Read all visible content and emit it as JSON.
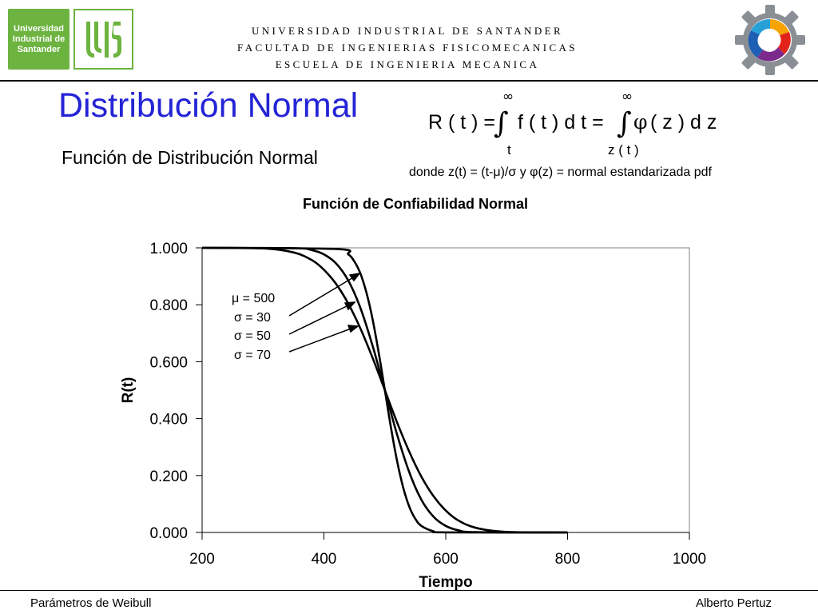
{
  "logos": {
    "university_logo_text": "Universidad\nIndustrial de\nSantander",
    "uis_logo_text": "UIS"
  },
  "header": {
    "lines": [
      "UNIVERSIDAD INDUSTRIAL DE SANTANDER",
      "FACULTAD DE  INGENIERIAS FISICOMECANICAS",
      "ESCUELA DE INGENIERIA MECANICA"
    ]
  },
  "slide": {
    "title": "Distribución Normal",
    "subtitle": "Función de Distribución Normal"
  },
  "formula": {
    "lhs": "R ( t ) =",
    "integrand1": "f ( t ) d t =",
    "integrand2": "( z ) d z",
    "phi": "φ",
    "upper_limit": "∞",
    "lower_limit_1": "t",
    "lower_limit_2": "z ( t )",
    "integral_sign": "∫",
    "note": "donde z(t) = (t-μ)/σ y φ(z) = normal estandarizada pdf"
  },
  "chart_data": {
    "type": "line",
    "title": "Función de Confiabilidad Normal",
    "xlabel": "Tiempo",
    "ylabel": "R(t)",
    "xlim": [
      200,
      1000
    ],
    "ylim": [
      0,
      1
    ],
    "x_ticks": [
      200,
      400,
      600,
      800,
      1000
    ],
    "y_ticks": [
      0,
      0.2,
      0.4,
      0.6,
      0.8,
      1.0
    ],
    "x_tick_labels": [
      "200",
      "400",
      "600",
      "800",
      "1000"
    ],
    "y_tick_labels": [
      "0.000",
      "0.200",
      "0.400",
      "0.600",
      "0.800",
      "1.000"
    ],
    "grid": false,
    "mu": 500,
    "series": [
      {
        "sigma": 30,
        "x": [
          200,
          420,
          440,
          450,
          460,
          470,
          480,
          490,
          500,
          510,
          520,
          530,
          540,
          550,
          560,
          580,
          600,
          800
        ],
        "y": [
          1.0,
          0.996,
          0.977,
          0.952,
          0.909,
          0.841,
          0.748,
          0.631,
          0.5,
          0.369,
          0.252,
          0.159,
          0.091,
          0.048,
          0.023,
          0.004,
          0.0004,
          0.0
        ]
      },
      {
        "sigma": 50,
        "x": [
          200,
          350,
          380,
          400,
          420,
          440,
          460,
          480,
          500,
          520,
          540,
          560,
          580,
          600,
          620,
          650,
          800
        ],
        "y": [
          1.0,
          0.999,
          0.992,
          0.977,
          0.945,
          0.885,
          0.788,
          0.655,
          0.5,
          0.345,
          0.212,
          0.115,
          0.055,
          0.023,
          0.008,
          0.001,
          0.0
        ]
      },
      {
        "sigma": 70,
        "x": [
          200,
          300,
          350,
          380,
          400,
          420,
          440,
          460,
          480,
          500,
          520,
          540,
          560,
          580,
          600,
          620,
          650,
          700,
          800
        ],
        "y": [
          1.0,
          0.998,
          0.984,
          0.957,
          0.923,
          0.873,
          0.804,
          0.716,
          0.613,
          0.5,
          0.387,
          0.284,
          0.196,
          0.127,
          0.077,
          0.043,
          0.016,
          0.002,
          0.0
        ]
      }
    ],
    "annotations": [
      "μ = 500",
      "σ = 30",
      "σ = 50",
      "σ = 70"
    ]
  },
  "footer": {
    "left": "Parámetros de Weibull",
    "right": "Alberto Pertuz"
  }
}
